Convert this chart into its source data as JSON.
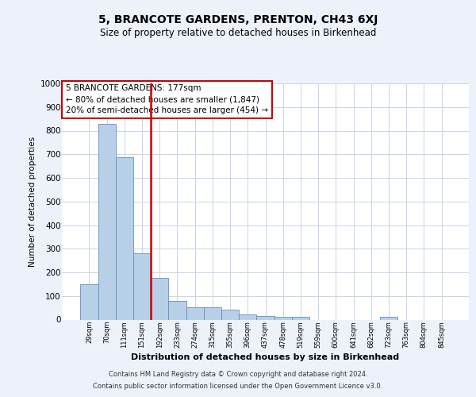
{
  "title": "5, BRANCOTE GARDENS, PRENTON, CH43 6XJ",
  "subtitle": "Size of property relative to detached houses in Birkenhead",
  "xlabel": "Distribution of detached houses by size in Birkenhead",
  "ylabel": "Number of detached properties",
  "bin_labels": [
    "29sqm",
    "70sqm",
    "111sqm",
    "151sqm",
    "192sqm",
    "233sqm",
    "274sqm",
    "315sqm",
    "355sqm",
    "396sqm",
    "437sqm",
    "478sqm",
    "519sqm",
    "559sqm",
    "600sqm",
    "641sqm",
    "682sqm",
    "723sqm",
    "763sqm",
    "804sqm",
    "845sqm"
  ],
  "bar_values": [
    148,
    830,
    686,
    280,
    175,
    78,
    52,
    52,
    42,
    22,
    15,
    12,
    12,
    0,
    0,
    0,
    0,
    12,
    0,
    0,
    0
  ],
  "bar_color": "#b8cfe8",
  "bar_edge_color": "#6090c0",
  "vline_color": "#cc0000",
  "vline_x": 3.5,
  "annotation_text": "5 BRANCOTE GARDENS: 177sqm\n← 80% of detached houses are smaller (1,847)\n20% of semi-detached houses are larger (454) →",
  "annotation_box_color": "#ffffff",
  "annotation_box_edge_color": "#cc0000",
  "ylim": [
    0,
    1000
  ],
  "yticks": [
    0,
    100,
    200,
    300,
    400,
    500,
    600,
    700,
    800,
    900,
    1000
  ],
  "footer_line1": "Contains HM Land Registry data © Crown copyright and database right 2024.",
  "footer_line2": "Contains public sector information licensed under the Open Government Licence v3.0.",
  "bg_color": "#edf1fa",
  "plot_bg_color": "#ffffff",
  "grid_color": "#c8d4e8"
}
